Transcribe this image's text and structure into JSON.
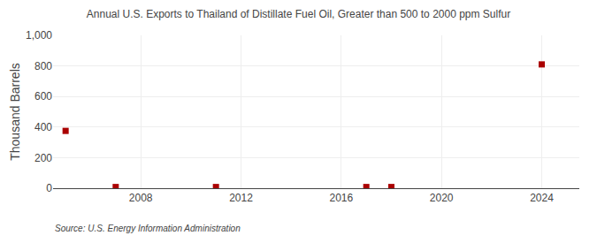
{
  "chart_data": {
    "type": "scatter",
    "title": "Annual U.S. Exports to Thailand of Distillate Fuel Oil, Greater than 500 to 2000 ppm Sulfur",
    "ylabel": "Thousand Barrels",
    "annotations": [
      "Source: U.S. Energy Information Administration"
    ],
    "x": [
      2005,
      2007,
      2011,
      2017,
      2018,
      2024
    ],
    "values": [
      375,
      8,
      8,
      8,
      8,
      810
    ],
    "color": "#aa0000",
    "marker": "square",
    "xlim": [
      2004.5,
      2025.5
    ],
    "xticks": [
      2008,
      2012,
      2016,
      2020,
      2024
    ],
    "ylim": [
      0,
      1000
    ],
    "yticks": [
      0,
      200,
      400,
      600,
      800,
      {
        "value": 1000,
        "label": "1,000"
      }
    ],
    "grid": true
  }
}
